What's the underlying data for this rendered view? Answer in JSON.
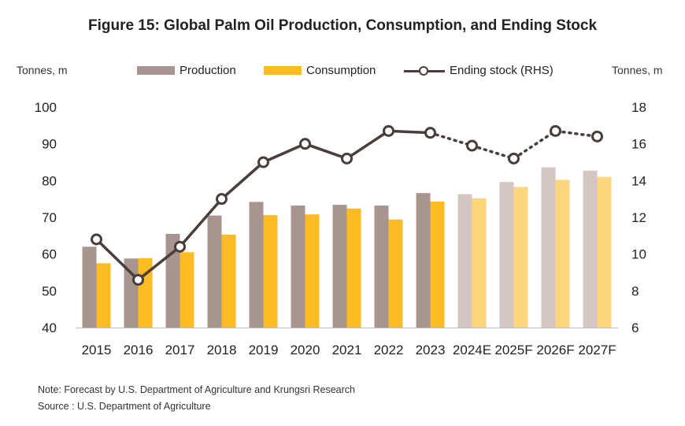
{
  "title": "Figure 15: Global Palm Oil Production, Consumption, and Ending Stock",
  "left_unit": "Tonnes, m",
  "right_unit": "Tonnes, m",
  "legend": {
    "production": "Production",
    "consumption": "Consumption",
    "ending_stock": "Ending stock (RHS)"
  },
  "notes": {
    "note": "Note: Forecast by U.S. Department of Agriculture and Krungsri Research",
    "source": "Source : U.S. Department of Agriculture"
  },
  "colors": {
    "production": "#a89590",
    "production_forecast": "#d4c6c2",
    "consumption": "#fbbb23",
    "consumption_forecast": "#fdd77e",
    "ending_stock": "#4a3d3b"
  },
  "chart_data": {
    "type": "bar",
    "categories": [
      "2015",
      "2016",
      "2017",
      "2018",
      "2019",
      "2020",
      "2021",
      "2022",
      "2023",
      "2024E",
      "2025F",
      "2026F",
      "2027F"
    ],
    "forecast_from_index": 9,
    "series": [
      {
        "name": "Production",
        "type": "bar",
        "axis": "left",
        "values": [
          62.0,
          58.8,
          65.5,
          70.5,
          74.2,
          73.2,
          73.4,
          73.2,
          76.6,
          76.3,
          79.6,
          83.6,
          82.7
        ]
      },
      {
        "name": "Consumption",
        "type": "bar",
        "axis": "left",
        "values": [
          57.5,
          58.9,
          60.5,
          65.3,
          70.6,
          70.8,
          72.4,
          69.4,
          74.3,
          75.2,
          78.3,
          80.2,
          81.0
        ]
      },
      {
        "name": "Ending stock (RHS)",
        "type": "line",
        "axis": "right",
        "values": [
          10.8,
          8.6,
          10.4,
          13.0,
          15.0,
          16.0,
          15.2,
          16.7,
          16.6,
          15.9,
          15.2,
          16.7,
          16.4
        ]
      }
    ],
    "ylim_left": [
      40,
      100
    ],
    "yticks_left": [
      40,
      50,
      60,
      70,
      80,
      90,
      100
    ],
    "ylim_right": [
      6,
      18
    ],
    "yticks_right": [
      6,
      8,
      10,
      12,
      14,
      16,
      18
    ],
    "grid": false,
    "legend_position": "top"
  }
}
